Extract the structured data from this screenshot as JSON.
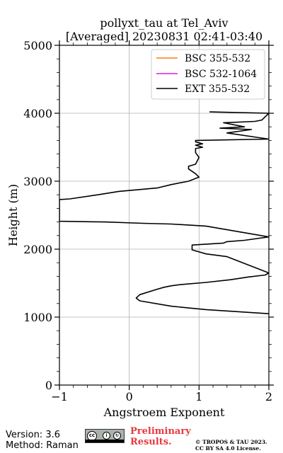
{
  "chart_data": {
    "type": "line",
    "title_line1": "pollyxt_tau at Tel_Aviv",
    "title_line2": "[Averaged] 20230831 02:41-03:40",
    "xlabel": "Angstroem Exponent",
    "ylabel": "Height (m)",
    "xlim": [
      -1,
      2
    ],
    "ylim": [
      0,
      5000
    ],
    "x_ticks": [
      -1,
      0,
      1,
      2
    ],
    "x_tick_labels": [
      "−1",
      "0",
      "1",
      "2"
    ],
    "y_ticks": [
      0,
      1000,
      2000,
      3000,
      4000,
      5000
    ],
    "y_tick_labels": [
      "0",
      "1000",
      "2000",
      "3000",
      "4000",
      "5000"
    ],
    "grid": true,
    "legend_position": "top-right",
    "series": [
      {
        "name": "BSC 355-532",
        "color": "#ff7f0e",
        "x": [],
        "y": []
      },
      {
        "name": "BSC 532-1064",
        "color": "#e31ae3",
        "x": [],
        "y": []
      },
      {
        "name": "EXT 355-532",
        "color": "#000000",
        "x": [
          2.0,
          1.1,
          0.6,
          0.15,
          0.1,
          0.15,
          0.4,
          0.5,
          0.6,
          0.75,
          1.1,
          1.45,
          1.7,
          1.95,
          2.0,
          1.4,
          1.1,
          0.9,
          0.9,
          1.35,
          1.4,
          1.65,
          2.0,
          1.1,
          0.6,
          0.2,
          -0.35,
          -1.0,
          -1.0,
          -0.85,
          -0.45,
          -0.15,
          0.4,
          0.6,
          0.85,
          1.0,
          0.95,
          0.85,
          0.85,
          0.95,
          1.0,
          0.95,
          0.95,
          1.05,
          0.95,
          1.05,
          0.95,
          0.95,
          2.0,
          1.4,
          1.75,
          1.3,
          1.65,
          1.35,
          1.8,
          1.9,
          2.0,
          1.15
        ],
        "y": [
          1050,
          1110,
          1160,
          1240,
          1280,
          1330,
          1410,
          1440,
          1460,
          1480,
          1510,
          1550,
          1590,
          1620,
          1650,
          1890,
          1930,
          1990,
          2060,
          2090,
          2110,
          2130,
          2180,
          2340,
          2370,
          2380,
          2400,
          2410,
          2730,
          2740,
          2800,
          2850,
          2900,
          2950,
          3000,
          3060,
          3110,
          3180,
          3220,
          3250,
          3350,
          3420,
          3480,
          3500,
          3530,
          3550,
          3580,
          3600,
          3620,
          3710,
          3760,
          3780,
          3800,
          3860,
          3880,
          3900,
          4000,
          4020
        ]
      }
    ]
  },
  "footer": {
    "version": "Version: 3.6",
    "method": "Method: Raman",
    "license_badge_label": "CC BY SA",
    "preliminary_line1": "Preliminary",
    "preliminary_line2": "Results.",
    "copyright_line1": "© TROPOS & TAU 2023.",
    "copyright_line2": "CC BY SA 4.0 License."
  }
}
